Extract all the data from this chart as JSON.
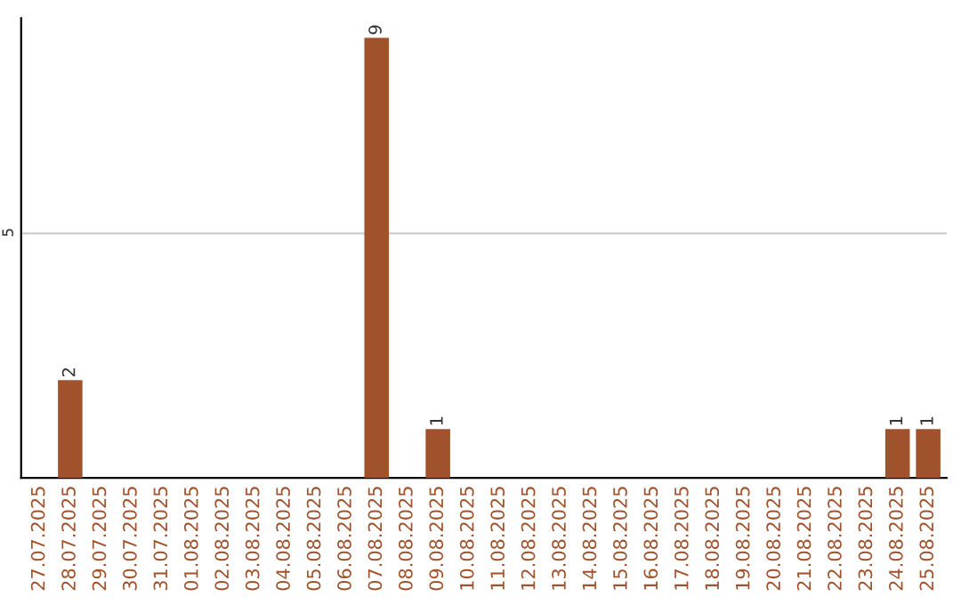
{
  "chart_data": {
    "type": "bar",
    "categories": [
      "27.07.2025",
      "28.07.2025",
      "29.07.2025",
      "30.07.2025",
      "31.07.2025",
      "01.08.2025",
      "02.08.2025",
      "03.08.2025",
      "04.08.2025",
      "05.08.2025",
      "06.08.2025",
      "07.08.2025",
      "08.08.2025",
      "09.08.2025",
      "10.08.2025",
      "11.08.2025",
      "12.08.2025",
      "13.08.2025",
      "14.08.2025",
      "15.08.2025",
      "16.08.2025",
      "17.08.2025",
      "18.08.2025",
      "19.08.2025",
      "20.08.2025",
      "21.08.2025",
      "22.08.2025",
      "23.08.2025",
      "24.08.2025",
      "25.08.2025"
    ],
    "values": [
      0,
      2,
      0,
      0,
      0,
      0,
      0,
      0,
      0,
      0,
      0,
      9,
      0,
      1,
      0,
      0,
      0,
      0,
      0,
      0,
      0,
      0,
      0,
      0,
      0,
      0,
      0,
      0,
      1,
      1
    ],
    "value_labels": [
      null,
      "2",
      null,
      null,
      null,
      null,
      null,
      null,
      null,
      null,
      null,
      "9",
      null,
      "1",
      null,
      null,
      null,
      null,
      null,
      null,
      null,
      null,
      null,
      null,
      null,
      null,
      null,
      null,
      "1",
      "1"
    ],
    "color": "#a0522d",
    "ylim": [
      0,
      9.4
    ],
    "yticks": [
      5
    ],
    "grid": "y"
  }
}
